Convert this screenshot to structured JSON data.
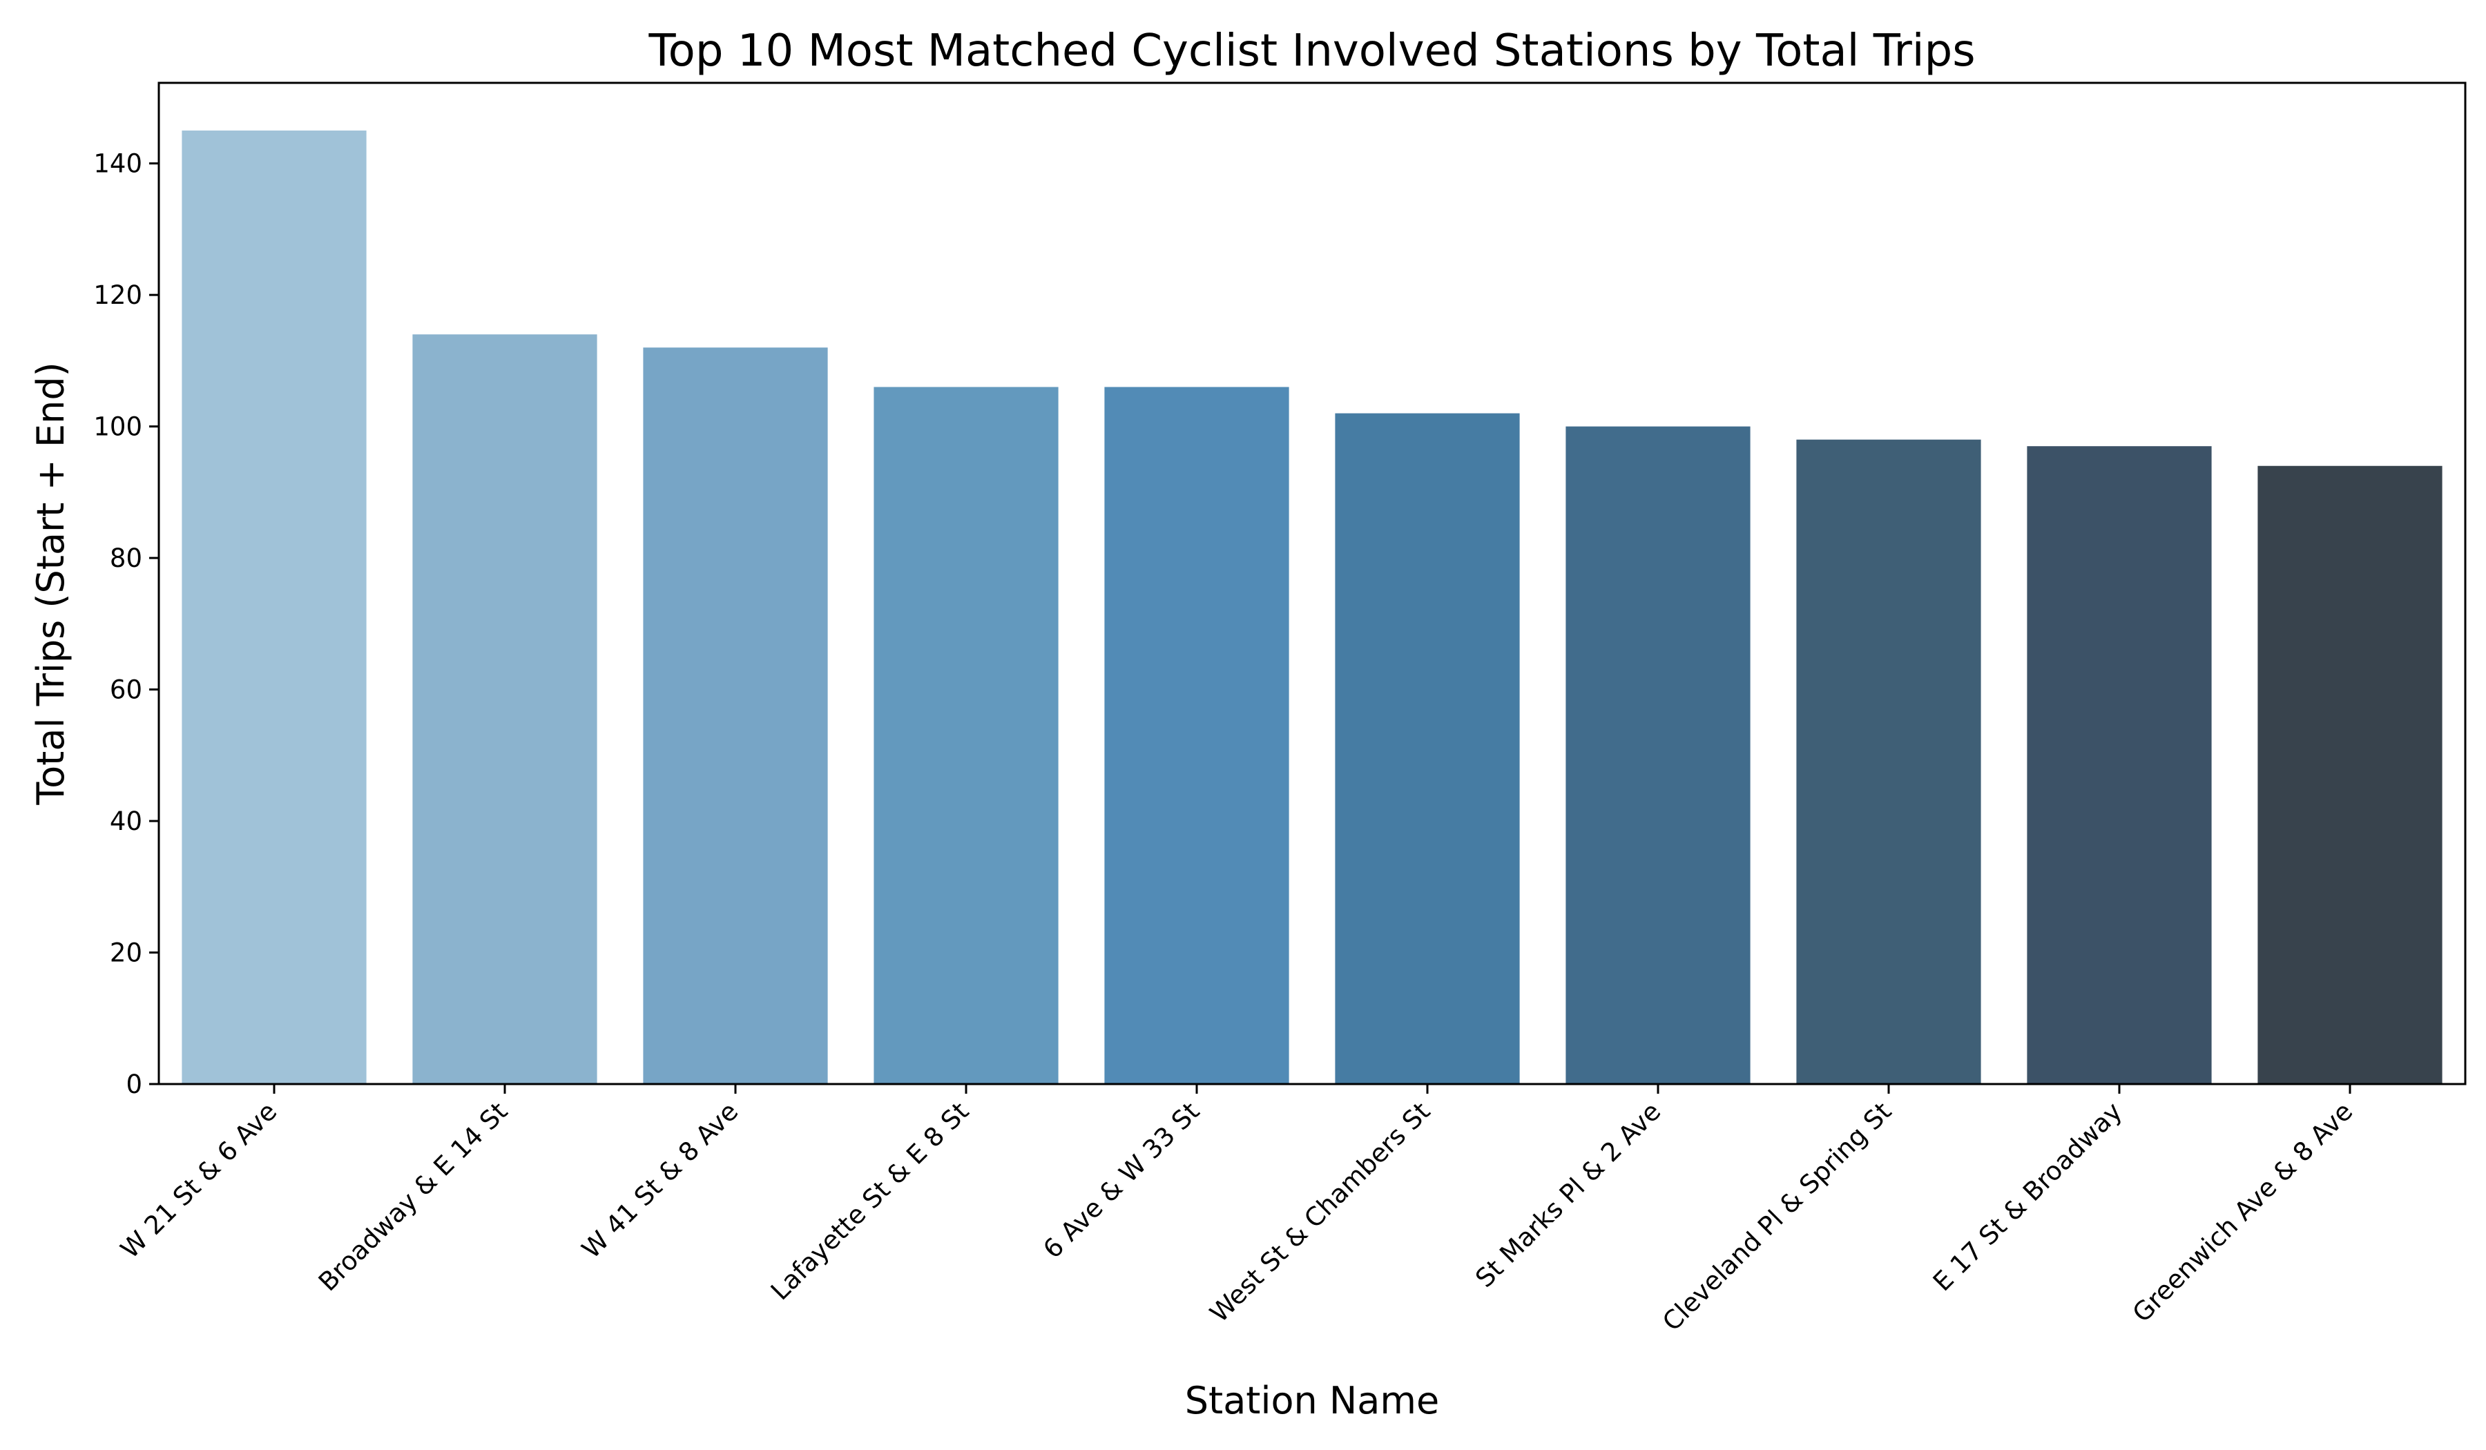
{
  "chart_data": {
    "type": "bar",
    "title": "Top 10 Most Matched Cyclist Involved Stations by Total Trips",
    "xlabel": "Station Name",
    "ylabel": "Total Trips (Start + End)",
    "categories": [
      "W 21 St & 6 Ave",
      "Broadway & E 14 St",
      "W 41 St & 8 Ave",
      "Lafayette St & E 8 St",
      "6 Ave & W 33 St",
      "West St & Chambers St",
      "St Marks Pl & 2 Ave",
      "Cleveland Pl & Spring St",
      "E 17 St & Broadway",
      "Greenwich Ave & 8 Ave"
    ],
    "values": [
      145,
      114,
      112,
      106,
      106,
      102,
      100,
      98,
      97,
      94
    ],
    "colors": [
      "#a0c2d8",
      "#8bb3ce",
      "#77a5c6",
      "#6399be",
      "#528bb6",
      "#467ca3",
      "#416c8c",
      "#3f5f76",
      "#3c5267",
      "#38434d"
    ],
    "ylim": [
      0,
      152.25
    ],
    "yticks": [
      0,
      20,
      40,
      60,
      80,
      100,
      120,
      140
    ],
    "grid": false,
    "legend": "none"
  }
}
